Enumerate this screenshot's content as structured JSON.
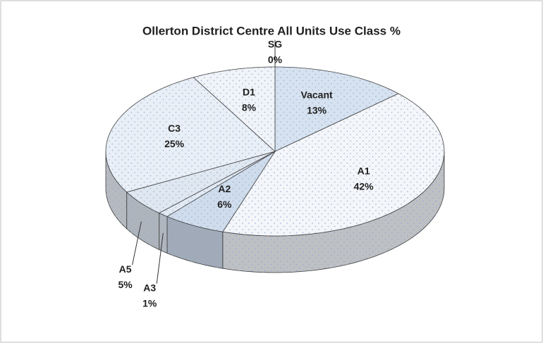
{
  "chart_data": {
    "type": "pie",
    "title": "Ollerton District Centre All Units Use Class %",
    "categories": [
      "SG",
      "Vacant",
      "A1",
      "A2",
      "A3",
      "A5",
      "C3",
      "D1"
    ],
    "values": [
      0,
      13,
      42,
      6,
      1,
      5,
      25,
      8
    ],
    "value_labels": [
      "0%",
      "13%",
      "42%",
      "6%",
      "1%",
      "5%",
      "25%",
      "8%"
    ],
    "colors": [
      "#d9e3ef",
      "#d6e2f0",
      "#f4f6fa",
      "#cfdcec",
      "#e2eaf4",
      "#dfe7f1",
      "#e9eff7",
      "#f0f3f8"
    ]
  }
}
